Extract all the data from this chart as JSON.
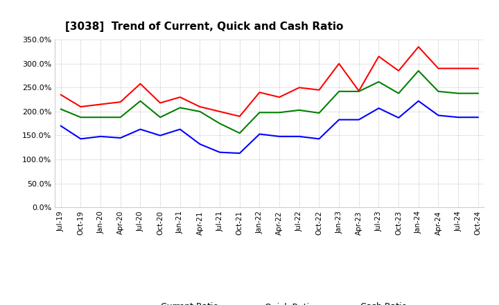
{
  "title": "[3038]  Trend of Current, Quick and Cash Ratio",
  "labels": [
    "Jul-19",
    "Oct-19",
    "Jan-20",
    "Apr-20",
    "Jul-20",
    "Oct-20",
    "Jan-21",
    "Apr-21",
    "Jul-21",
    "Oct-21",
    "Jan-22",
    "Apr-22",
    "Jul-22",
    "Oct-22",
    "Jan-23",
    "Apr-23",
    "Jul-23",
    "Oct-23",
    "Jan-24",
    "Apr-24",
    "Jul-24",
    "Oct-24"
  ],
  "current_ratio": [
    235,
    210,
    215,
    220,
    258,
    218,
    230,
    210,
    200,
    190,
    240,
    230,
    250,
    245,
    300,
    243,
    315,
    285,
    335,
    290,
    290,
    290
  ],
  "quick_ratio": [
    205,
    188,
    188,
    188,
    222,
    188,
    208,
    200,
    175,
    155,
    198,
    198,
    203,
    197,
    242,
    242,
    262,
    238,
    285,
    242,
    238,
    238
  ],
  "cash_ratio": [
    170,
    143,
    148,
    145,
    163,
    150,
    163,
    132,
    115,
    113,
    153,
    148,
    148,
    143,
    183,
    183,
    207,
    187,
    222,
    192,
    188,
    188
  ],
  "current_color": "#FF0000",
  "quick_color": "#008000",
  "cash_color": "#0000FF",
  "ylim": [
    0,
    350
  ],
  "yticks": [
    0,
    50,
    100,
    150,
    200,
    250,
    300,
    350
  ],
  "background_color": "#ffffff",
  "grid_color": "#aaaaaa",
  "fig_width": 7.2,
  "fig_height": 4.4,
  "dpi": 100
}
